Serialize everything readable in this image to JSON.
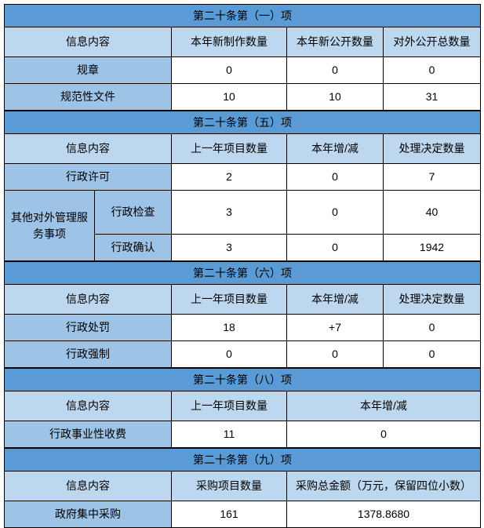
{
  "colors": {
    "section_title_bg": "#5b9bd5",
    "header_row_bg": "#bdd7ee",
    "label_cell_bg": "#9dc3e6",
    "data_cell_bg": "#ffffff",
    "border": "#000000",
    "text": "#000000"
  },
  "sections": [
    {
      "title": "第二十条第（一）项",
      "columns": [
        "信息内容",
        "本年新制作数量",
        "本年新公开数量",
        "对外公开总数量"
      ],
      "merged_tail": false,
      "rows": [
        {
          "label": "规章",
          "values": [
            "0",
            "0",
            "0"
          ]
        },
        {
          "label": "规范性文件",
          "values": [
            "10",
            "10",
            "31"
          ]
        }
      ]
    },
    {
      "title": "第二十条第（五）项",
      "columns": [
        "信息内容",
        "上一年项目数量",
        "本年增/减",
        "处理决定数量"
      ],
      "merged_tail": false,
      "rows": [
        {
          "label": "行政许可",
          "values": [
            "2",
            "0",
            "7"
          ]
        },
        {
          "group": "其他对外管理服务事项",
          "label": "行政检查",
          "values": [
            "3",
            "0",
            "40"
          ]
        },
        {
          "sub": true,
          "label": "行政确认",
          "values": [
            "3",
            "0",
            "1942"
          ]
        }
      ]
    },
    {
      "title": "第二十条第（六）项",
      "columns": [
        "信息内容",
        "上一年项目数量",
        "本年增/减",
        "处理决定数量"
      ],
      "merged_tail": false,
      "rows": [
        {
          "label": "行政处罚",
          "values": [
            "18",
            "+7",
            "0"
          ]
        },
        {
          "label": "行政强制",
          "values": [
            "0",
            "0",
            "0"
          ]
        }
      ]
    },
    {
      "title": "第二十条第（八）项",
      "columns": [
        "信息内容",
        "上一年项目数量",
        "本年增/减"
      ],
      "merged_tail": true,
      "rows": [
        {
          "label": "行政事业性收费",
          "values": [
            "11",
            "0"
          ]
        }
      ]
    },
    {
      "title": "第二十条第（九）项",
      "columns": [
        "信息内容",
        "采购项目数量",
        "采购总金额（万元，保留四位小数）"
      ],
      "merged_tail": true,
      "rows": [
        {
          "label": "政府集中采购",
          "values": [
            "161",
            "1378.8680"
          ]
        }
      ]
    }
  ]
}
